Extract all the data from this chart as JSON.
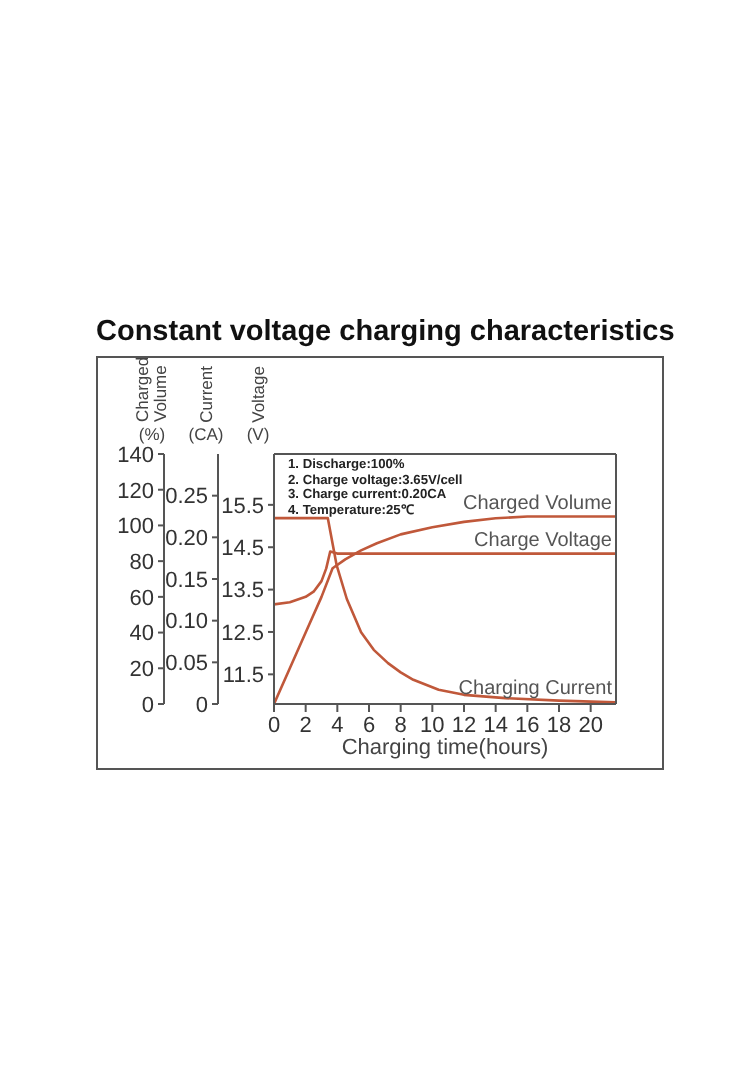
{
  "chart_data": {
    "type": "line",
    "title": "Constant voltage charging characteristics",
    "xlabel": "Charging time(hours)",
    "ylabel": "Charged Volume (%)",
    "y2label": "Current (CA)",
    "y3label": "Voltage (V)",
    "annotations": [
      "1. Discharge:100%",
      "2. Charge voltage:3.65V/cell",
      "3. Charge current:0.20CA",
      "4. Temperature:25℃"
    ],
    "xlim": [
      0,
      21.6
    ],
    "xticks": [
      0,
      2,
      4,
      6,
      8,
      10,
      12,
      14,
      16,
      18,
      20
    ],
    "ylim": [
      0,
      140
    ],
    "yticks": [
      0,
      20,
      40,
      60,
      80,
      100,
      120,
      140
    ],
    "y2lim": [
      0,
      0.3
    ],
    "y2ticks": [
      0,
      0.05,
      {
        "value": 0.1,
        "label": "0.10"
      },
      0.15,
      {
        "value": 0.2,
        "label": "0.20"
      },
      0.25
    ],
    "y3lim": [
      10.8,
      16.7
    ],
    "y3ticks": [
      11.5,
      12.5,
      13.5,
      14.5,
      15.5
    ],
    "legend": false,
    "grid": false,
    "marker": "none",
    "line_style": "solid",
    "series": [
      {
        "name": "Charged Volume",
        "color": "#c0583a",
        "axis": "y",
        "x": [
          0,
          1,
          2,
          3,
          3.7,
          4.5,
          5.5,
          6.5,
          8,
          10,
          12,
          14,
          16,
          18,
          21.6
        ],
        "values": [
          0,
          20,
          40,
          60,
          76,
          81,
          86,
          90,
          95,
          99,
          102,
          104,
          105,
          105,
          105
        ]
      },
      {
        "name": "Charge Voltage",
        "color": "#c0583a",
        "axis": "y3",
        "x": [
          0,
          1,
          2,
          2.5,
          3,
          3.3,
          3.55,
          4,
          21.6
        ],
        "values": [
          13.15,
          13.2,
          13.33,
          13.45,
          13.7,
          14.0,
          14.4,
          14.35,
          14.35
        ]
      },
      {
        "name": "Charging Current",
        "color": "#c0583a",
        "axis": "y2",
        "x": [
          0,
          3.4,
          3.95,
          4.6,
          5.5,
          6.3,
          7.2,
          8,
          8.8,
          10.4,
          12,
          14.6,
          18,
          21.6
        ],
        "values": [
          0.223,
          0.223,
          0.167,
          0.126,
          0.086,
          0.065,
          0.049,
          0.038,
          0.029,
          0.017,
          0.011,
          0.007,
          0.004,
          0.002
        ]
      }
    ]
  }
}
